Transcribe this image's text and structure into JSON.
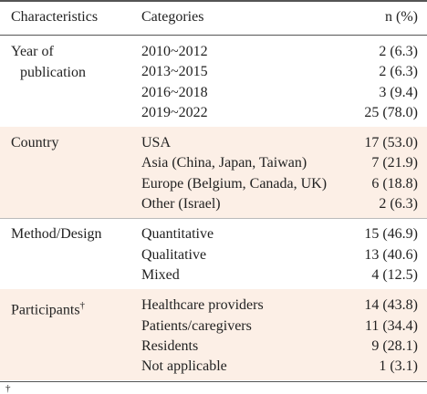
{
  "header": {
    "columns": [
      "Characteristics",
      "Categories",
      "n (%)"
    ]
  },
  "groups": [
    {
      "label": "Year of publication",
      "rows": [
        [
          "2010~2012",
          "2 (6.3)"
        ],
        [
          "2013~2015",
          "2 (6.3)"
        ],
        [
          "2016~2018",
          "3 (9.4)"
        ],
        [
          "2019~2022",
          "25 (78.0)"
        ]
      ]
    },
    {
      "label": "Country",
      "rows": [
        [
          "USA",
          "17 (53.0)"
        ],
        [
          "Asia (China, Japan, Taiwan)",
          "7 (21.9)"
        ],
        [
          "Europe (Belgium, Canada, UK)",
          "6 (18.8)"
        ],
        [
          "Other (Israel)",
          "2 (6.3)"
        ]
      ]
    },
    {
      "label": "Method/Design",
      "rows": [
        [
          "Quantitative",
          "15 (46.9)"
        ],
        [
          "Qualitative",
          "13 (40.6)"
        ],
        [
          "Mixed",
          "4 (12.5)"
        ]
      ]
    },
    {
      "label": "Participants",
      "label_mark": "†",
      "rows": [
        [
          "Healthcare providers",
          "14 (43.8)"
        ],
        [
          "Patients/caregivers",
          "11 (34.4)"
        ],
        [
          "Residents",
          "9 (28.1)"
        ],
        [
          "Not applicable",
          "1 (3.1)"
        ]
      ]
    }
  ],
  "footnote": "†"
}
